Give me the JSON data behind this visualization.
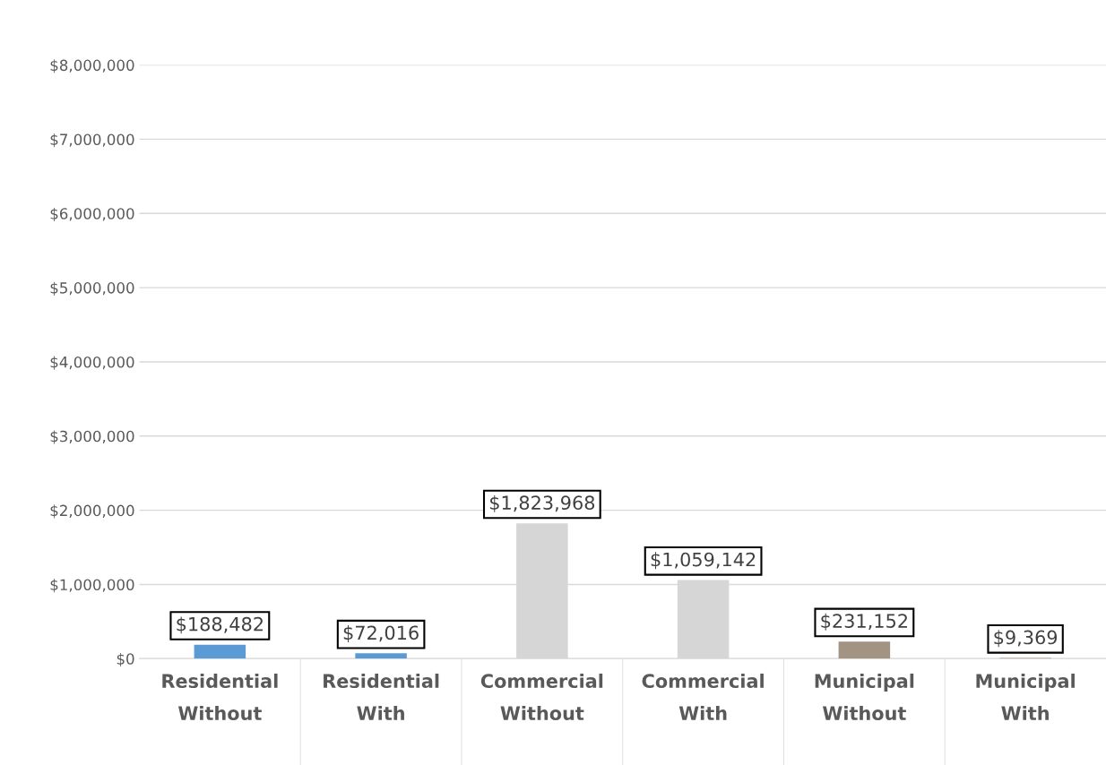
{
  "chart_data": {
    "type": "bar",
    "categories": [
      "Residential\nWithout",
      "Residential\nWith",
      "Commercial\nWithout",
      "Commercial\nWith",
      "Municipal\nWithout",
      "Municipal\nWith"
    ],
    "values": [
      188482,
      72016,
      1823968,
      1059142,
      231152,
      9369
    ],
    "colors": [
      "#5b9bd5",
      "#5b9bd5",
      "#d6d6d6",
      "#d6d6d6",
      "#a39383",
      "#a39383"
    ],
    "value_labels": [
      "$188,482",
      "$72,016",
      "$1,823,968",
      "$1,059,142",
      "$231,152",
      "$9,369"
    ],
    "ylim": [
      0,
      8000000
    ],
    "yticks": [
      {
        "value": 0,
        "label": "$0"
      },
      {
        "value": 1000000,
        "label": "$1,000,000"
      },
      {
        "value": 2000000,
        "label": "$2,000,000"
      },
      {
        "value": 3000000,
        "label": "$3,000,000"
      },
      {
        "value": 4000000,
        "label": "$4,000,000"
      },
      {
        "value": 5000000,
        "label": "$5,000,000"
      },
      {
        "value": 6000000,
        "label": "$6,000,000"
      },
      {
        "value": 7000000,
        "label": "$7,000,000"
      },
      {
        "value": 8000000,
        "label": "$8,000,000"
      }
    ],
    "grid": "y"
  }
}
